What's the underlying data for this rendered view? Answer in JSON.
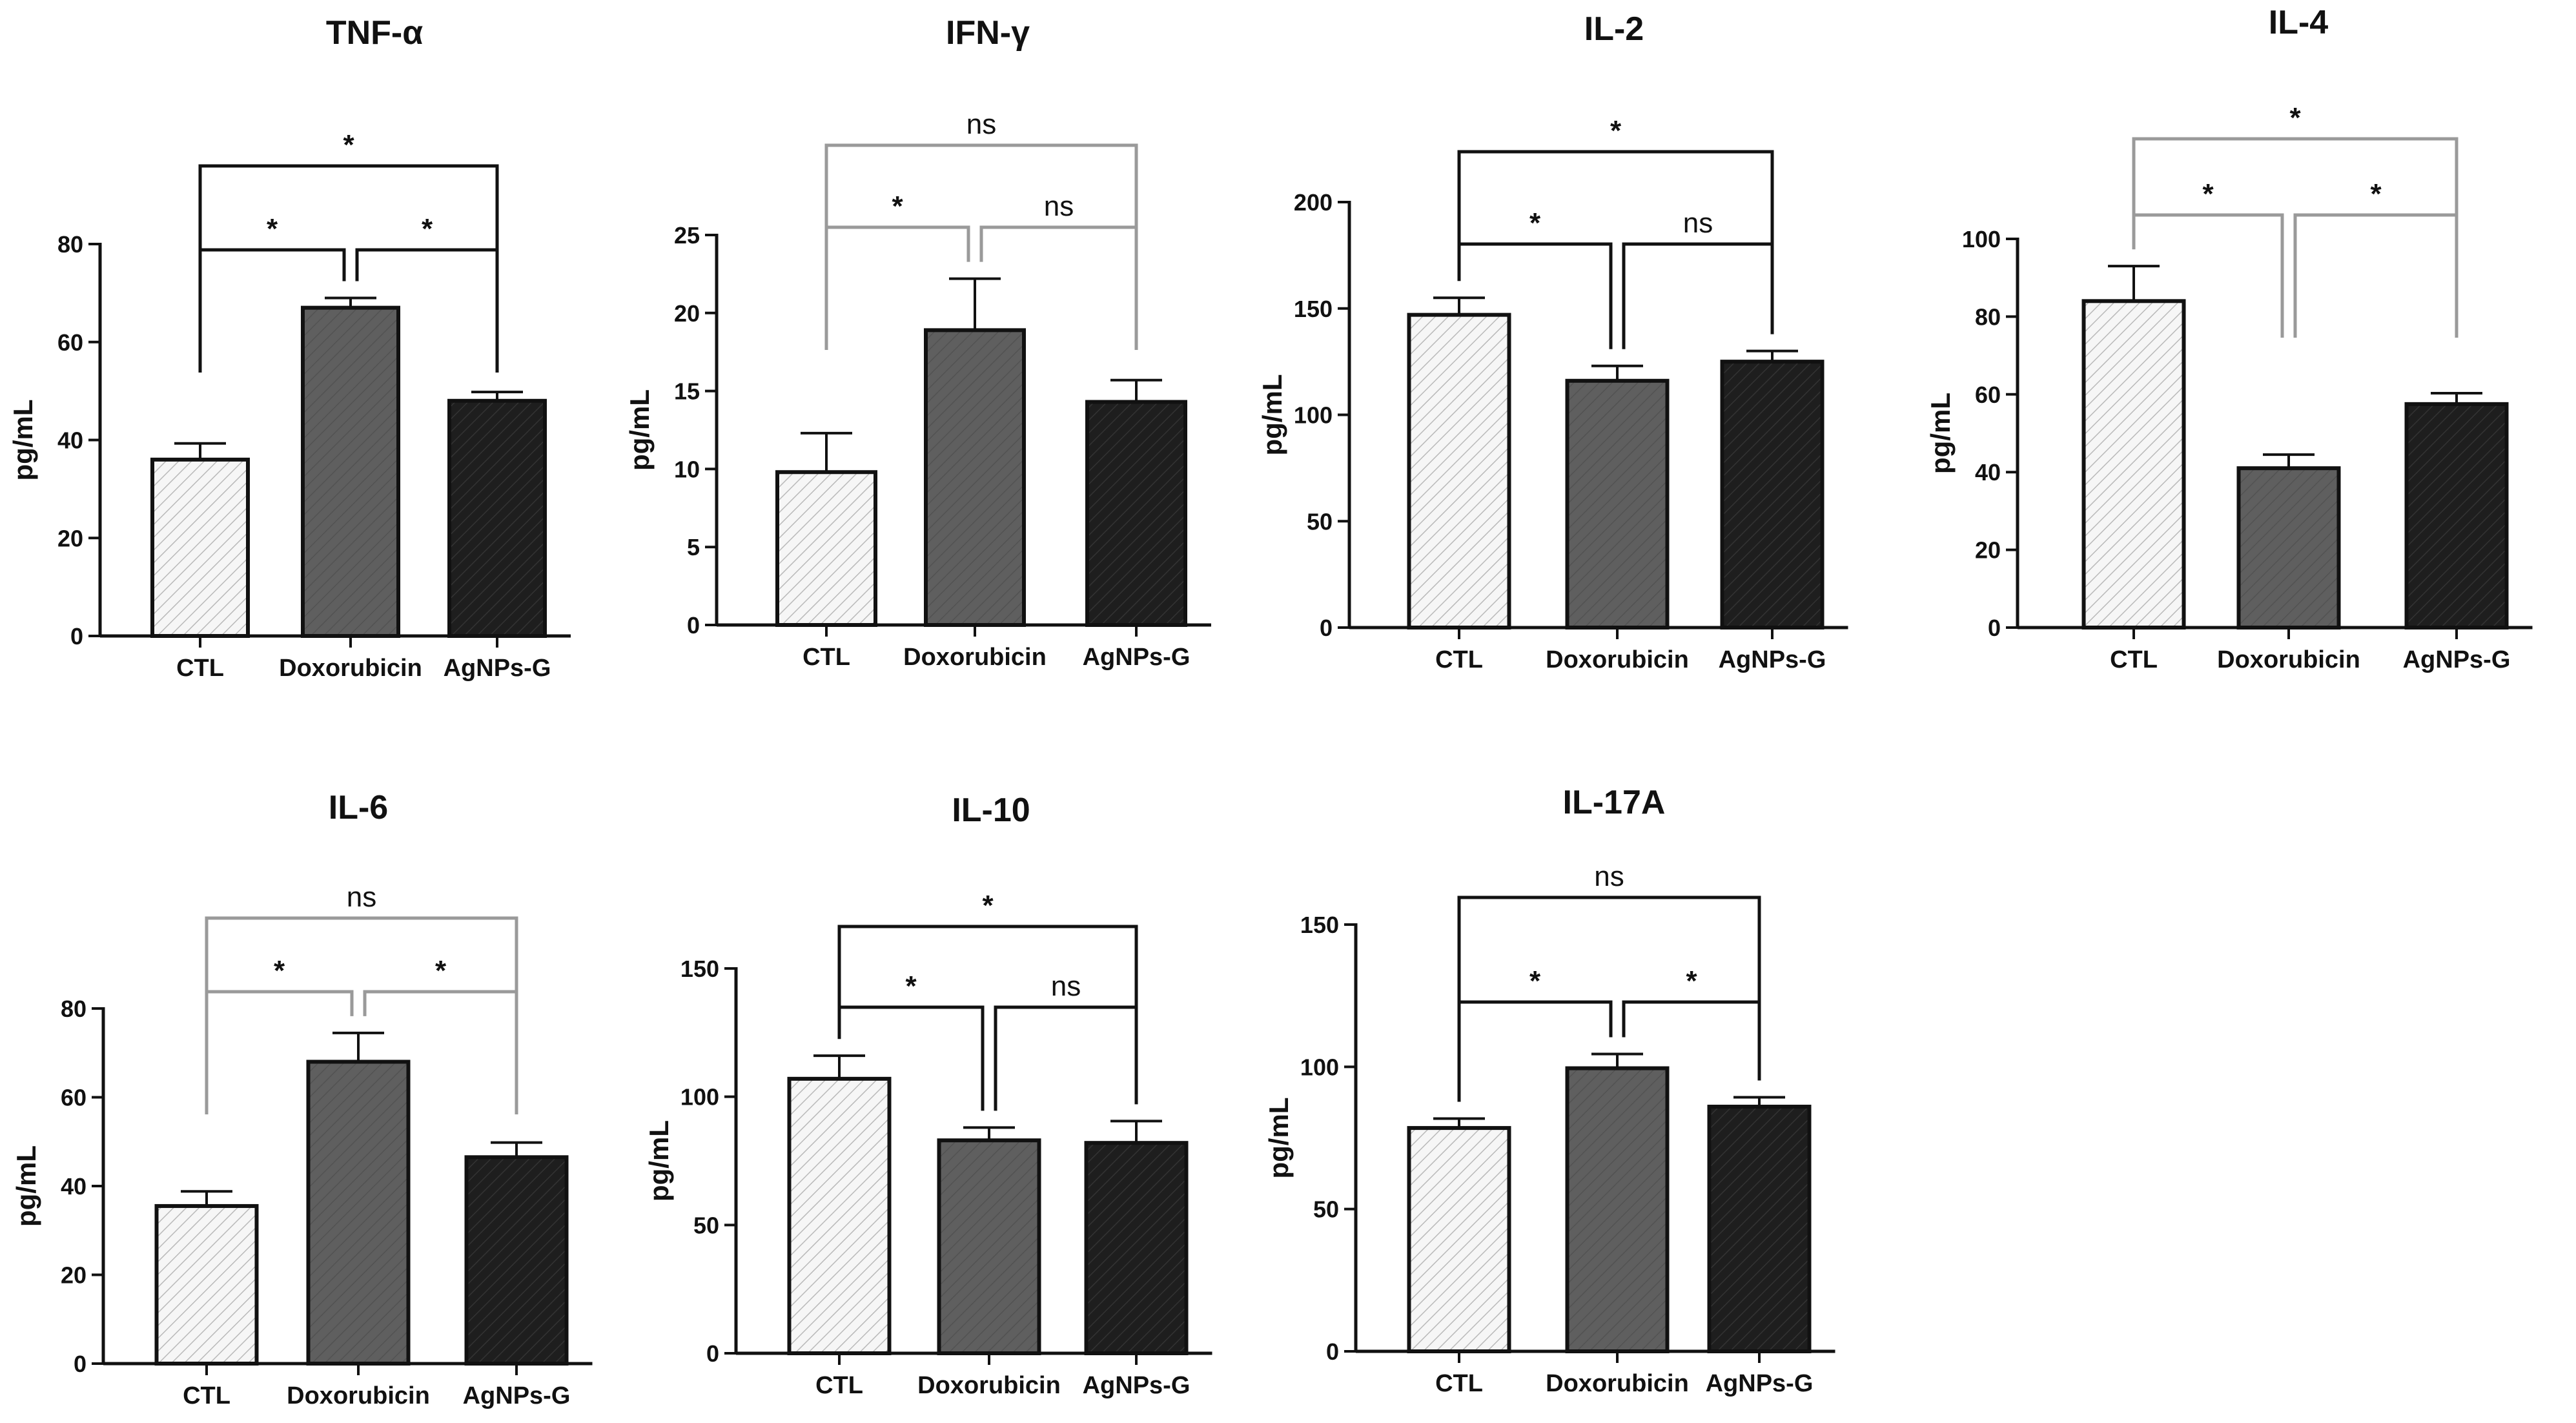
{
  "figure": {
    "categories": [
      "CTL",
      "Doxorubicin",
      "AgNPs-G"
    ]
  },
  "chart_data": [
    {
      "type": "bar",
      "title": "TNF-α",
      "ylabel": "pg/mL",
      "xlabel": "",
      "categories": [
        "CTL",
        "Doxorubicin",
        "AgNPs-G"
      ],
      "values": [
        36,
        67,
        48
      ],
      "errors": [
        3.3,
        2,
        1.8
      ],
      "ylim": [
        0,
        80
      ],
      "yticks": [
        0,
        20,
        40,
        60,
        80
      ],
      "brackets": [
        {
          "from": 0,
          "to": 2,
          "label": "*"
        },
        {
          "from": 0,
          "to": 1,
          "label": "*"
        },
        {
          "from": 1,
          "to": 2,
          "label": "*"
        }
      ]
    },
    {
      "type": "bar",
      "title": "IFN-γ",
      "ylabel": "pg/mL",
      "xlabel": "",
      "categories": [
        "CTL",
        "Doxorubicin",
        "AgNPs-G"
      ],
      "values": [
        9.8,
        18.9,
        14.3
      ],
      "errors": [
        2.5,
        3.3,
        1.4
      ],
      "ylim": [
        0,
        25
      ],
      "yticks": [
        0,
        5,
        10,
        15,
        20,
        25
      ],
      "brackets": [
        {
          "from": 0,
          "to": 2,
          "label": "ns"
        },
        {
          "from": 0,
          "to": 1,
          "label": "*"
        },
        {
          "from": 1,
          "to": 2,
          "label": "ns"
        }
      ]
    },
    {
      "type": "bar",
      "title": "IL-2",
      "ylabel": "pg/mL",
      "xlabel": "",
      "categories": [
        "CTL",
        "Doxorubicin",
        "AgNPs-G"
      ],
      "values": [
        147,
        116,
        125
      ],
      "errors": [
        8,
        7,
        5
      ],
      "ylim": [
        0,
        200
      ],
      "yticks": [
        0,
        50,
        100,
        150,
        200
      ],
      "brackets": [
        {
          "from": 0,
          "to": 2,
          "label": "*"
        },
        {
          "from": 0,
          "to": 1,
          "label": "*"
        },
        {
          "from": 1,
          "to": 2,
          "label": "ns"
        }
      ]
    },
    {
      "type": "bar",
      "title": "IL-4",
      "ylabel": "pg/mL",
      "xlabel": "",
      "categories": [
        "CTL",
        "Doxorubicin",
        "AgNPs-G"
      ],
      "values": [
        84,
        41,
        57.5
      ],
      "errors": [
        9,
        3.5,
        2.8
      ],
      "ylim": [
        0,
        100
      ],
      "yticks": [
        0,
        20,
        40,
        60,
        80,
        100
      ],
      "brackets": [
        {
          "from": 0,
          "to": 2,
          "label": "*"
        },
        {
          "from": 0,
          "to": 1,
          "label": "*"
        },
        {
          "from": 1,
          "to": 2,
          "label": "*"
        }
      ]
    },
    {
      "type": "bar",
      "title": "IL-6",
      "ylabel": "pg/mL",
      "xlabel": "",
      "categories": [
        "CTL",
        "Doxorubicin",
        "AgNPs-G"
      ],
      "values": [
        35.5,
        68,
        46.5
      ],
      "errors": [
        3.3,
        6.5,
        3.3
      ],
      "ylim": [
        0,
        80
      ],
      "yticks": [
        0,
        20,
        40,
        60,
        80
      ],
      "brackets": [
        {
          "from": 0,
          "to": 2,
          "label": "ns"
        },
        {
          "from": 0,
          "to": 1,
          "label": "*"
        },
        {
          "from": 1,
          "to": 2,
          "label": "*"
        }
      ]
    },
    {
      "type": "bar",
      "title": "IL-10",
      "ylabel": "pg/mL",
      "xlabel": "",
      "categories": [
        "CTL",
        "Doxorubicin",
        "AgNPs-G"
      ],
      "values": [
        107,
        83,
        82
      ],
      "errors": [
        9,
        5,
        8.5
      ],
      "ylim": [
        0,
        150
      ],
      "yticks": [
        0,
        50,
        100,
        150
      ],
      "brackets": [
        {
          "from": 0,
          "to": 2,
          "label": "*"
        },
        {
          "from": 0,
          "to": 1,
          "label": "*"
        },
        {
          "from": 1,
          "to": 2,
          "label": "ns"
        }
      ]
    },
    {
      "type": "bar",
      "title": "IL-17A",
      "ylabel": "pg/mL",
      "xlabel": "",
      "categories": [
        "CTL",
        "Doxorubicin",
        "AgNPs-G"
      ],
      "values": [
        78.5,
        99.5,
        86
      ],
      "errors": [
        3.3,
        5,
        3.3
      ],
      "ylim": [
        0,
        150
      ],
      "yticks": [
        0,
        50,
        100,
        150
      ],
      "brackets": [
        {
          "from": 0,
          "to": 2,
          "label": "ns"
        },
        {
          "from": 0,
          "to": 1,
          "label": "*"
        },
        {
          "from": 1,
          "to": 2,
          "label": "*"
        }
      ]
    }
  ]
}
